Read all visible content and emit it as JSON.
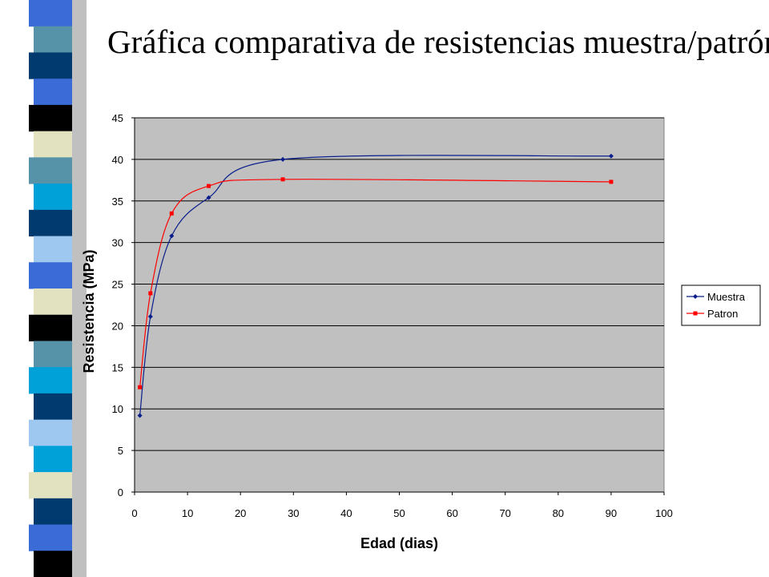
{
  "slide": {
    "title": "Gráfica comparativa de resistencias muestra/patrón"
  },
  "decoration": {
    "bands": [
      "#3a6bd6",
      "#5692a8",
      "#003a6e",
      "#3a6bd6",
      "#000000",
      "#e2e2c0",
      "#5692a8",
      "#00a0d8",
      "#003a6e",
      "#9ec8f0",
      "#3a6bd6",
      "#e2e2c0",
      "#000000",
      "#5692a8",
      "#00a0d8",
      "#003a6e",
      "#9ec8f0",
      "#00a0d8",
      "#e2e2c0",
      "#003a6e",
      "#3a6bd6",
      "#000000"
    ],
    "shadow": "#8c8c8c"
  },
  "chart_data": {
    "type": "line",
    "title": "",
    "xlabel": "Edad (dias)",
    "ylabel": "Resistencia (MPa)",
    "xlim": [
      0,
      100
    ],
    "ylim": [
      0,
      45
    ],
    "xticks": [
      0,
      10,
      20,
      30,
      40,
      50,
      60,
      70,
      80,
      90,
      100
    ],
    "yticks": [
      0,
      5,
      10,
      15,
      20,
      25,
      30,
      35,
      40,
      45
    ],
    "grid": "horizontal",
    "plot_background": "#c0c0c0",
    "legend_position": "right",
    "smooth": true,
    "series": [
      {
        "name": "Muestra",
        "color": "#0a1e8c",
        "marker": "diamond",
        "x": [
          1,
          3,
          7,
          14,
          28,
          90
        ],
        "y": [
          9.2,
          21.1,
          30.8,
          35.4,
          40.0,
          40.4
        ]
      },
      {
        "name": "Patron",
        "color": "#ff0000",
        "marker": "square",
        "x": [
          1,
          3,
          7,
          14,
          28,
          90
        ],
        "y": [
          12.6,
          23.9,
          33.5,
          36.8,
          37.6,
          37.3
        ]
      }
    ]
  }
}
